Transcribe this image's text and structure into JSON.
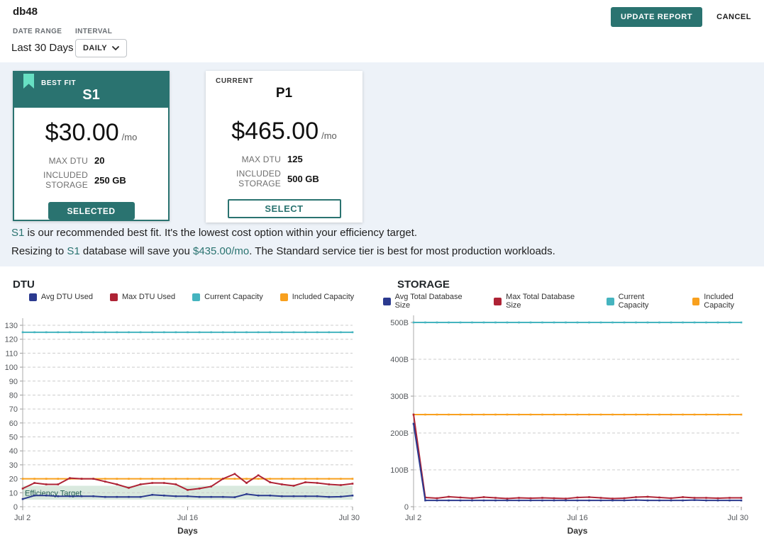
{
  "header": {
    "title": "db48",
    "date_range_label": "DATE RANGE",
    "date_range_value": "Last 30 Days",
    "interval_label": "INTERVAL",
    "interval_value": "DAILY",
    "update_button": "UPDATE REPORT",
    "cancel_button": "CANCEL"
  },
  "cards": {
    "best_fit": {
      "badge": "BEST FIT",
      "tier": "S1",
      "price": "$30.00",
      "per": "/mo",
      "max_dtu_label": "MAX DTU",
      "max_dtu": "20",
      "storage_label": "INCLUDED STORAGE",
      "storage": "250 GB",
      "button": "SELECTED"
    },
    "current": {
      "badge": "CURRENT",
      "tier": "P1",
      "price": "$465.00",
      "per": "/mo",
      "max_dtu_label": "MAX DTU",
      "max_dtu": "125",
      "storage_label": "INCLUDED STORAGE",
      "storage": "500 GB",
      "button": "SELECT"
    }
  },
  "recommendation": {
    "line1_parts": [
      {
        "t": "S1",
        "accent": true
      },
      {
        "t": " is our recommended best fit. It's the lowest cost option within your efficiency target.",
        "accent": false
      }
    ],
    "line2_parts": [
      {
        "t": "Resizing to ",
        "accent": false
      },
      {
        "t": "S1",
        "accent": true
      },
      {
        "t": " database will save you ",
        "accent": false
      },
      {
        "t": "$435.00/mo",
        "accent": true
      },
      {
        "t": ". The Standard service tier is best for most production workloads.",
        "accent": false
      }
    ]
  },
  "colors": {
    "accent_teal": "#2a7370",
    "mint": "#67e0c3",
    "band_bg": "#edf2f8",
    "navy": "#2b3a8f",
    "crimson": "#ae2335",
    "capacity_teal": "#45b4bf",
    "orange": "#f8a01e",
    "efficiency_fill": "#d9e9de",
    "efficiency_text": "#215f51"
  },
  "chart_data": [
    {
      "type": "line",
      "title": "DTU",
      "xlabel": "Days",
      "x_ticks": [
        {
          "i": 0,
          "label": "Jul 2"
        },
        {
          "i": 14,
          "label": "Jul 16"
        },
        {
          "i": 28,
          "label": "Jul 30"
        }
      ],
      "ylim": [
        0,
        130
      ],
      "y_ticks": [
        0,
        10,
        20,
        30,
        40,
        50,
        60,
        70,
        80,
        90,
        100,
        110,
        120,
        130
      ],
      "y_tick_labels": [
        "0",
        "10",
        "20",
        "30",
        "40",
        "50",
        "60",
        "70",
        "80",
        "90",
        "100",
        "110",
        "120",
        "130"
      ],
      "grid": true,
      "legend_position": "top",
      "draw_order": [
        2,
        3,
        1,
        0
      ],
      "annotation_band": {
        "label": "Efficiency Target",
        "from": 5,
        "to": 15,
        "fill": "#d9e9de",
        "text_color": "#215f51"
      },
      "series": [
        {
          "name": "Avg DTU Used",
          "color": "#2b3a8f",
          "values": [
            5.5,
            8,
            8,
            7.5,
            7.5,
            7.5,
            7.5,
            7,
            7,
            7,
            7,
            8.5,
            8,
            7.5,
            7.5,
            7,
            7,
            7,
            6.8,
            9,
            8,
            8,
            7.5,
            7.5,
            7.5,
            7.5,
            7,
            7.2,
            8
          ]
        },
        {
          "name": "Max DTU Used",
          "color": "#ae2335",
          "values": [
            13,
            17,
            16,
            16,
            20.5,
            20,
            20,
            18,
            16,
            13.5,
            16,
            17,
            17,
            16,
            12,
            13,
            14.5,
            20,
            23.5,
            17,
            22.5,
            17.5,
            16,
            15,
            17.5,
            17,
            16,
            15.5,
            16.5
          ]
        },
        {
          "name": "Current Capacity",
          "color": "#45b4bf",
          "values": [
            125,
            125,
            125,
            125,
            125,
            125,
            125,
            125,
            125,
            125,
            125,
            125,
            125,
            125,
            125,
            125,
            125,
            125,
            125,
            125,
            125,
            125,
            125,
            125,
            125,
            125,
            125,
            125,
            125
          ]
        },
        {
          "name": "Included Capacity",
          "color": "#f8a01e",
          "values": [
            20,
            20,
            20,
            20,
            20,
            20,
            20,
            20,
            20,
            20,
            20,
            20,
            20,
            20,
            20,
            20,
            20,
            20,
            20,
            20,
            20,
            20,
            20,
            20,
            20,
            20,
            20,
            20,
            20
          ]
        }
      ]
    },
    {
      "type": "line",
      "title": "STORAGE",
      "xlabel": "Days",
      "x_ticks": [
        {
          "i": 0,
          "label": "Jul 2"
        },
        {
          "i": 14,
          "label": "Jul 16"
        },
        {
          "i": 28,
          "label": "Jul 30"
        }
      ],
      "ylim": [
        0,
        500
      ],
      "y_ticks": [
        0,
        100,
        200,
        300,
        400,
        500
      ],
      "y_tick_labels": [
        "0",
        "100B",
        "200B",
        "300B",
        "400B",
        "500B"
      ],
      "grid": true,
      "legend_position": "top",
      "draw_order": [
        2,
        3,
        1,
        0
      ],
      "series": [
        {
          "name": "Avg Total Database Size",
          "color": "#2b3a8f",
          "values": [
            225,
            17,
            17,
            17,
            17,
            17,
            17,
            17,
            17,
            17,
            17,
            17,
            17,
            17,
            17,
            17,
            17,
            17,
            17,
            18,
            17,
            17,
            17,
            17,
            18,
            17,
            17,
            17,
            17
          ]
        },
        {
          "name": "Max Total Database Size",
          "color": "#ae2335",
          "values": [
            250,
            25,
            23,
            27,
            25,
            23,
            26,
            24,
            22,
            24,
            23,
            24,
            23,
            22,
            25,
            26,
            24,
            22,
            23,
            26,
            27,
            25,
            23,
            26,
            24,
            24,
            23,
            24,
            24
          ]
        },
        {
          "name": "Current Capacity",
          "color": "#45b4bf",
          "values": [
            500,
            500,
            500,
            500,
            500,
            500,
            500,
            500,
            500,
            500,
            500,
            500,
            500,
            500,
            500,
            500,
            500,
            500,
            500,
            500,
            500,
            500,
            500,
            500,
            500,
            500,
            500,
            500,
            500
          ]
        },
        {
          "name": "Included Capacity",
          "color": "#f8a01e",
          "values": [
            250,
            250,
            250,
            250,
            250,
            250,
            250,
            250,
            250,
            250,
            250,
            250,
            250,
            250,
            250,
            250,
            250,
            250,
            250,
            250,
            250,
            250,
            250,
            250,
            250,
            250,
            250,
            250,
            250
          ]
        }
      ]
    }
  ]
}
